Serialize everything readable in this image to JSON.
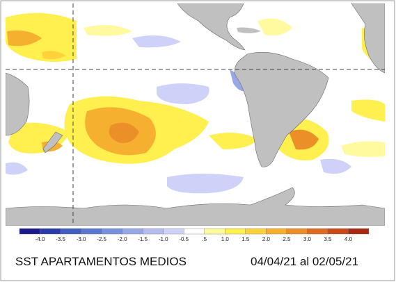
{
  "title": "SST APARTAMENTOS MEDIOS",
  "period": "04/04/21 al 02/05/21",
  "colorbar": {
    "labels": [
      "-4.0",
      "-3.5",
      "-3.0",
      "-2.5",
      "-2.0",
      "-1.5",
      "-1.0",
      "-0.5",
      ".5",
      "1.0",
      "1.5",
      "2.0",
      "2.5",
      "3.0",
      "3.5",
      "4.0"
    ],
    "colors": [
      "#1a1a8c",
      "#2a3aa8",
      "#4060c0",
      "#5a78d0",
      "#7890dc",
      "#98a8e6",
      "#b4bcf0",
      "#cfd2f8",
      "#ffffff",
      "#fffaa0",
      "#fff050",
      "#ffd23c",
      "#f5b030",
      "#eb9028",
      "#dc6a20",
      "#c84818",
      "#a82810"
    ]
  }
}
